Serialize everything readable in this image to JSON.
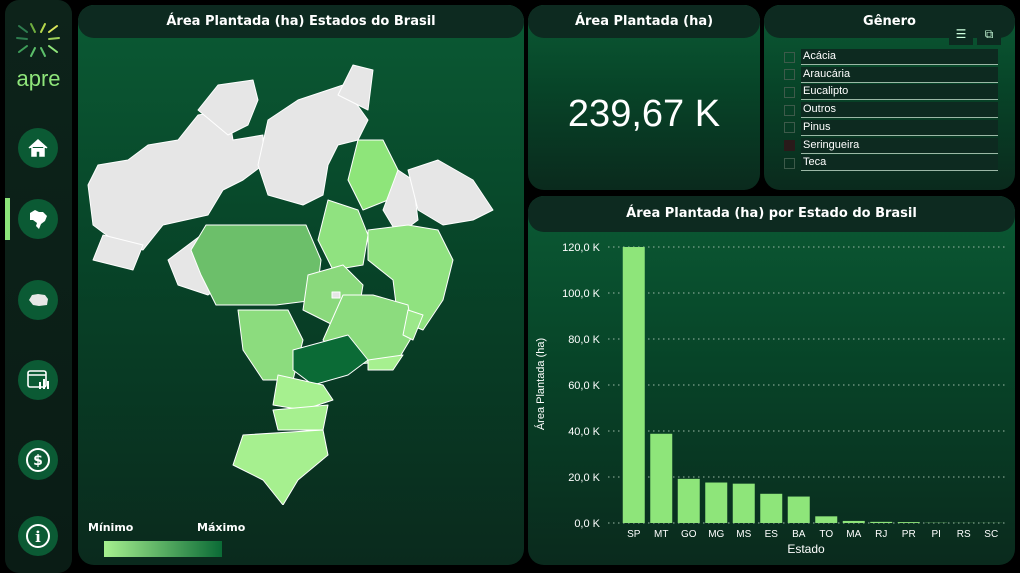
{
  "sidebar": {
    "logo_text": "apre",
    "items": [
      {
        "name": "home"
      },
      {
        "name": "brazil-map",
        "active": true
      },
      {
        "name": "parana-map"
      },
      {
        "name": "dashboard"
      },
      {
        "name": "finance"
      },
      {
        "name": "info"
      }
    ]
  },
  "map_panel": {
    "title": "Área Plantada (ha) Estados do Brasil",
    "legend_min": "Mínimo",
    "legend_max": "Máximo"
  },
  "kpi": {
    "title": "Área Plantada (ha)",
    "value": "239,67 K"
  },
  "genero": {
    "title": "Gênero",
    "options": [
      {
        "label": "Acácia",
        "checked": false
      },
      {
        "label": "Araucária",
        "checked": false
      },
      {
        "label": "Eucalipto",
        "checked": false
      },
      {
        "label": "Outros",
        "checked": false
      },
      {
        "label": "Pinus",
        "checked": false
      },
      {
        "label": "Seringueira",
        "checked": false
      },
      {
        "label": "Teca",
        "checked": false
      }
    ]
  },
  "colors": {
    "bar": "#8ee57a",
    "accent": "#0b5a34",
    "map_empty": "#e6e6e6"
  },
  "chart_data": {
    "type": "bar",
    "title": "Área Plantada (ha) por Estado do Brasil",
    "xlabel": "Estado",
    "ylabel": "Área Plantada (ha)",
    "categories": [
      "SP",
      "MT",
      "GO",
      "MG",
      "MS",
      "ES",
      "BA",
      "TO",
      "MA",
      "RJ",
      "PR",
      "PI",
      "RS",
      "SC"
    ],
    "values": [
      120000,
      38800,
      19200,
      17600,
      17100,
      12700,
      11500,
      2900,
      900,
      500,
      400,
      100,
      50,
      50
    ],
    "ylim": [
      0,
      120000
    ],
    "yticks": [
      "0,0 K",
      "20,0 K",
      "40,0 K",
      "60,0 K",
      "80,0 K",
      "100,0 K",
      "120,0 K"
    ],
    "grid": true
  }
}
